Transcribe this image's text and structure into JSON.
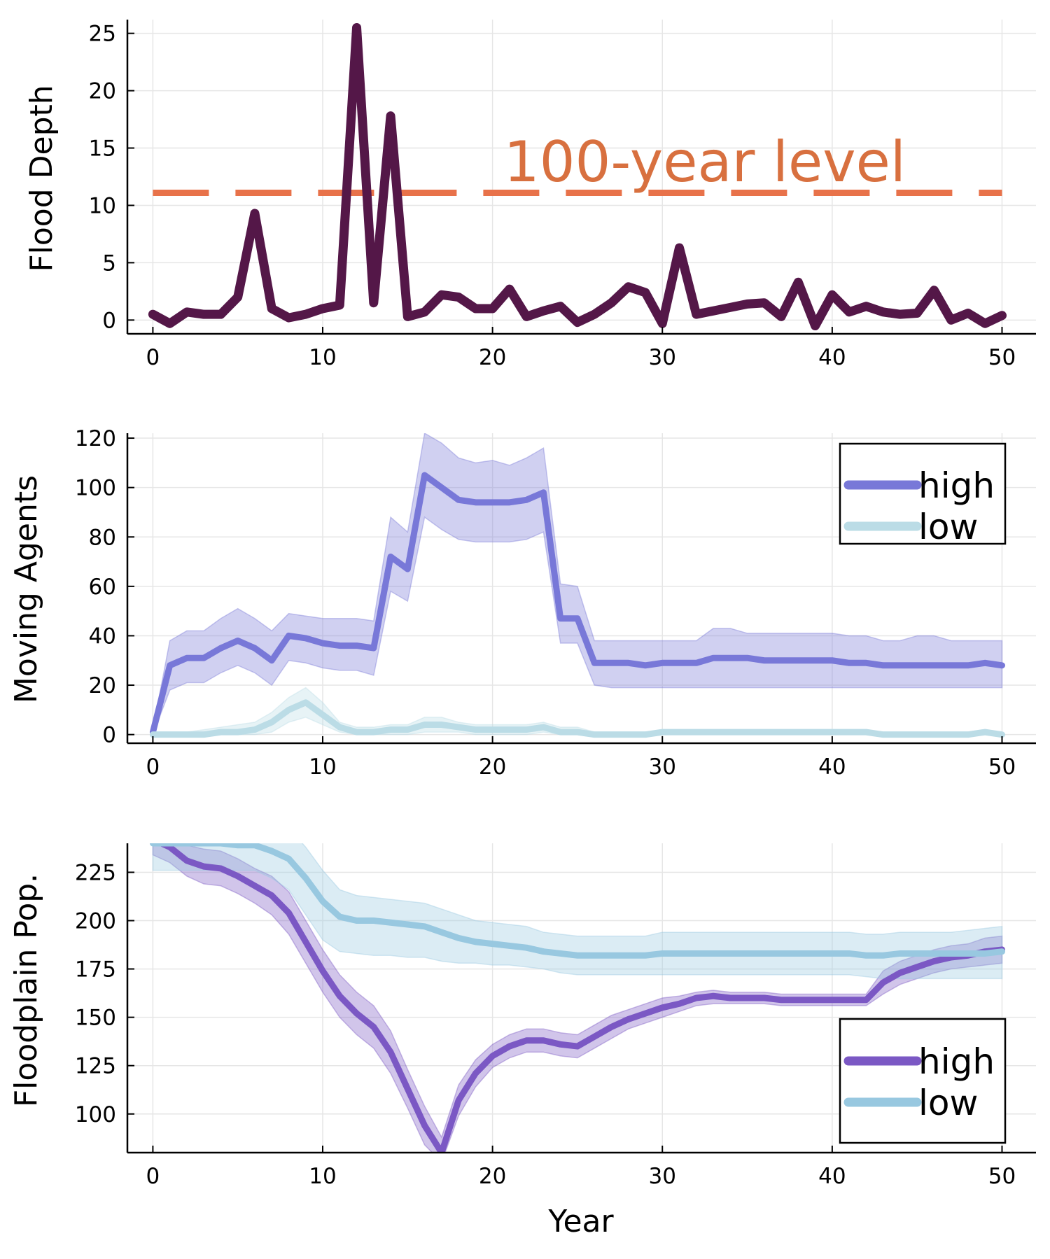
{
  "colors": {
    "depth": "#541748",
    "threshold": "#E8724A",
    "annotation": "#D8703F",
    "moving_high": "#7878D8",
    "moving_low": "#BBDCE6",
    "pop_high": "#7B58C4",
    "pop_low": "#98C8E0",
    "grid": "#E6E6E6"
  },
  "chart_data": [
    {
      "type": "line",
      "ylabel": "Flood Depth",
      "xlabel": "",
      "xlim": [
        -1.5,
        52
      ],
      "ylim": [
        -1.2,
        26.2
      ],
      "xticks": [
        0,
        10,
        20,
        30,
        40,
        50
      ],
      "yticks": [
        0,
        5,
        10,
        15,
        20,
        25
      ],
      "annotation": {
        "text": "100-year level",
        "x": 32.5,
        "y": 13.8
      },
      "hline": {
        "y": 11.1,
        "style": "dashed"
      },
      "series": [
        {
          "x": [
            0,
            1,
            2,
            3,
            4,
            5,
            6,
            7,
            8,
            9,
            10,
            11,
            12,
            13,
            14,
            15,
            16,
            17,
            18,
            19,
            20,
            21,
            22,
            23,
            24,
            25,
            26,
            27,
            28,
            29,
            30,
            31,
            32,
            33,
            34,
            35,
            36,
            37,
            38,
            39,
            40,
            41,
            42,
            43,
            44,
            45,
            46,
            47,
            48,
            49,
            50
          ],
          "y": [
            0.5,
            -0.3,
            0.7,
            0.5,
            0.5,
            2.0,
            9.3,
            1.0,
            0.2,
            0.5,
            1.0,
            1.3,
            25.5,
            1.5,
            17.8,
            0.3,
            0.7,
            2.2,
            2.0,
            1.0,
            1.0,
            2.7,
            0.3,
            0.8,
            1.2,
            -0.2,
            0.5,
            1.5,
            2.9,
            2.4,
            -0.3,
            6.3,
            0.5,
            0.8,
            1.1,
            1.4,
            1.5,
            0.3,
            3.3,
            -0.5,
            2.2,
            0.7,
            1.2,
            0.7,
            0.5,
            0.6,
            2.6,
            0.0,
            0.6,
            -0.3,
            0.4
          ]
        }
      ]
    },
    {
      "type": "line",
      "ylabel": "Moving Agents",
      "xlabel": "",
      "xlim": [
        -1.5,
        52
      ],
      "ylim": [
        -3.5,
        122
      ],
      "xticks": [
        0,
        10,
        20,
        30,
        40,
        50
      ],
      "yticks": [
        0,
        20,
        40,
        60,
        80,
        100,
        120
      ],
      "legend": "top-right",
      "series": [
        {
          "name": "high",
          "x": [
            0,
            1,
            2,
            3,
            4,
            5,
            6,
            7,
            8,
            9,
            10,
            11,
            12,
            13,
            14,
            15,
            16,
            17,
            18,
            19,
            20,
            21,
            22,
            23,
            24,
            25,
            26,
            27,
            28,
            29,
            30,
            31,
            32,
            33,
            34,
            35,
            36,
            37,
            38,
            39,
            40,
            41,
            42,
            43,
            44,
            45,
            46,
            47,
            48,
            49,
            50
          ],
          "y": [
            1,
            28,
            31,
            31,
            35,
            38,
            35,
            30,
            40,
            39,
            37,
            36,
            36,
            35,
            72,
            67,
            105,
            100,
            95,
            94,
            94,
            94,
            95,
            98,
            47,
            47,
            29,
            29,
            29,
            28,
            29,
            29,
            29,
            31,
            31,
            31,
            30,
            30,
            30,
            30,
            30,
            29,
            29,
            28,
            28,
            28,
            28,
            28,
            28,
            29,
            28
          ],
          "lower": [
            0,
            18,
            21,
            21,
            25,
            28,
            25,
            20,
            30,
            29,
            27,
            26,
            26,
            24,
            58,
            54,
            88,
            83,
            79,
            78,
            78,
            78,
            79,
            82,
            37,
            37,
            20,
            19,
            19,
            19,
            19,
            19,
            19,
            19,
            19,
            19,
            19,
            19,
            19,
            19,
            19,
            19,
            19,
            19,
            19,
            19,
            19,
            19,
            19,
            19,
            19
          ],
          "upper": [
            2,
            38,
            42,
            42,
            47,
            51,
            47,
            42,
            49,
            48,
            47,
            47,
            47,
            46,
            88,
            82,
            122,
            118,
            112,
            110,
            111,
            109,
            112,
            116,
            61,
            60,
            38,
            38,
            38,
            38,
            38,
            38,
            38,
            43,
            43,
            41,
            41,
            41,
            41,
            41,
            41,
            40,
            40,
            38,
            38,
            40,
            40,
            38,
            38,
            38,
            38
          ]
        },
        {
          "name": "low",
          "x": [
            0,
            1,
            2,
            3,
            4,
            5,
            6,
            7,
            8,
            9,
            10,
            11,
            12,
            13,
            14,
            15,
            16,
            17,
            18,
            19,
            20,
            21,
            22,
            23,
            24,
            25,
            26,
            27,
            28,
            29,
            30,
            31,
            32,
            33,
            34,
            35,
            36,
            37,
            38,
            39,
            40,
            41,
            42,
            43,
            44,
            45,
            46,
            47,
            48,
            49,
            50
          ],
          "y": [
            0,
            0,
            0,
            0,
            1,
            1,
            2,
            5,
            10,
            13,
            8,
            3,
            1,
            1,
            2,
            2,
            4,
            4,
            3,
            2,
            2,
            2,
            2,
            3,
            1,
            1,
            0,
            0,
            0,
            0,
            1,
            1,
            1,
            1,
            1,
            1,
            1,
            1,
            1,
            1,
            1,
            1,
            1,
            0,
            0,
            0,
            0,
            0,
            0,
            1,
            0
          ],
          "lower": [
            0,
            0,
            0,
            0,
            0,
            0,
            0,
            1,
            5,
            7,
            4,
            1,
            0,
            0,
            0,
            0,
            1,
            1,
            1,
            0,
            0,
            0,
            0,
            1,
            0,
            0,
            0,
            0,
            0,
            0,
            0,
            0,
            0,
            0,
            0,
            0,
            0,
            0,
            0,
            0,
            0,
            0,
            0,
            0,
            0,
            0,
            0,
            0,
            0,
            0,
            0
          ],
          "upper": [
            1,
            1,
            1,
            2,
            3,
            4,
            5,
            9,
            15,
            19,
            13,
            5,
            3,
            3,
            4,
            4,
            7,
            7,
            5,
            4,
            4,
            4,
            4,
            5,
            3,
            3,
            1,
            1,
            1,
            1,
            2,
            2,
            2,
            2,
            2,
            2,
            2,
            2,
            2,
            2,
            2,
            2,
            2,
            1,
            1,
            1,
            1,
            1,
            1,
            2,
            1
          ]
        }
      ]
    },
    {
      "type": "line",
      "ylabel": "Floodplain Pop.",
      "xlabel": "Year",
      "xlim": [
        -1.5,
        52
      ],
      "ylim": [
        80,
        240
      ],
      "xticks": [
        0,
        10,
        20,
        30,
        40,
        50
      ],
      "yticks": [
        100,
        125,
        150,
        175,
        200,
        225
      ],
      "legend": "bottom-right",
      "series": [
        {
          "name": "high",
          "x": [
            0,
            1,
            2,
            3,
            4,
            5,
            6,
            7,
            8,
            9,
            10,
            11,
            12,
            13,
            14,
            15,
            16,
            17,
            18,
            19,
            20,
            21,
            22,
            23,
            24,
            25,
            26,
            27,
            28,
            29,
            30,
            31,
            32,
            33,
            34,
            35,
            36,
            37,
            38,
            39,
            40,
            41,
            42,
            43,
            44,
            45,
            46,
            47,
            48,
            49,
            50
          ],
          "y": [
            242,
            238,
            231,
            228,
            227,
            223,
            218,
            213,
            204,
            189,
            174,
            161,
            152,
            145,
            132,
            113,
            94,
            80,
            107,
            121,
            130,
            135,
            138,
            138,
            136,
            135,
            140,
            145,
            149,
            152,
            155,
            157,
            160,
            161,
            160,
            160,
            160,
            159,
            159,
            159,
            159,
            159,
            159,
            168,
            173,
            176,
            179,
            181,
            182,
            184,
            185
          ],
          "lower": [
            234,
            230,
            223,
            219,
            218,
            214,
            209,
            203,
            193,
            178,
            163,
            150,
            141,
            134,
            121,
            103,
            84,
            75,
            99,
            114,
            124,
            129,
            132,
            132,
            130,
            129,
            134,
            139,
            144,
            147,
            150,
            153,
            156,
            157,
            157,
            157,
            157,
            156,
            156,
            156,
            156,
            156,
            156,
            162,
            167,
            170,
            173,
            175,
            176,
            177,
            178
          ],
          "upper": [
            250,
            246,
            239,
            237,
            236,
            232,
            227,
            223,
            215,
            200,
            185,
            172,
            163,
            156,
            143,
            123,
            104,
            88,
            115,
            128,
            136,
            141,
            144,
            144,
            142,
            141,
            146,
            151,
            154,
            157,
            160,
            161,
            163,
            164,
            163,
            163,
            163,
            162,
            162,
            162,
            162,
            162,
            162,
            174,
            179,
            182,
            185,
            187,
            188,
            191,
            192
          ]
        },
        {
          "name": "low",
          "x": [
            0,
            1,
            2,
            3,
            4,
            5,
            6,
            7,
            8,
            9,
            10,
            11,
            12,
            13,
            14,
            15,
            16,
            17,
            18,
            19,
            20,
            21,
            22,
            23,
            24,
            25,
            26,
            27,
            28,
            29,
            30,
            31,
            32,
            33,
            34,
            35,
            36,
            37,
            38,
            39,
            40,
            41,
            42,
            43,
            44,
            45,
            46,
            47,
            48,
            49,
            50
          ],
          "y": [
            240,
            240,
            240,
            240,
            240,
            239,
            239,
            236,
            232,
            222,
            210,
            202,
            200,
            200,
            199,
            198,
            197,
            194,
            191,
            189,
            188,
            187,
            186,
            184,
            183,
            182,
            182,
            182,
            182,
            182,
            183,
            183,
            183,
            183,
            183,
            183,
            183,
            183,
            183,
            183,
            183,
            183,
            182,
            182,
            183,
            183,
            183,
            183,
            183,
            183,
            184
          ],
          "lower": [
            226,
            226,
            226,
            226,
            226,
            226,
            226,
            222,
            216,
            203,
            190,
            184,
            183,
            182,
            182,
            181,
            181,
            179,
            178,
            178,
            177,
            177,
            176,
            175,
            173,
            172,
            172,
            172,
            172,
            172,
            172,
            172,
            172,
            172,
            172,
            172,
            172,
            172,
            172,
            172,
            172,
            172,
            171,
            170,
            170,
            170,
            170,
            170,
            170,
            170,
            170
          ],
          "upper": [
            254,
            254,
            254,
            254,
            254,
            252,
            252,
            250,
            248,
            238,
            226,
            216,
            213,
            212,
            211,
            210,
            209,
            206,
            203,
            200,
            199,
            198,
            197,
            194,
            193,
            192,
            192,
            192,
            192,
            192,
            194,
            194,
            194,
            194,
            194,
            194,
            194,
            194,
            194,
            194,
            194,
            194,
            193,
            193,
            194,
            194,
            194,
            194,
            195,
            196,
            197
          ]
        }
      ]
    }
  ]
}
